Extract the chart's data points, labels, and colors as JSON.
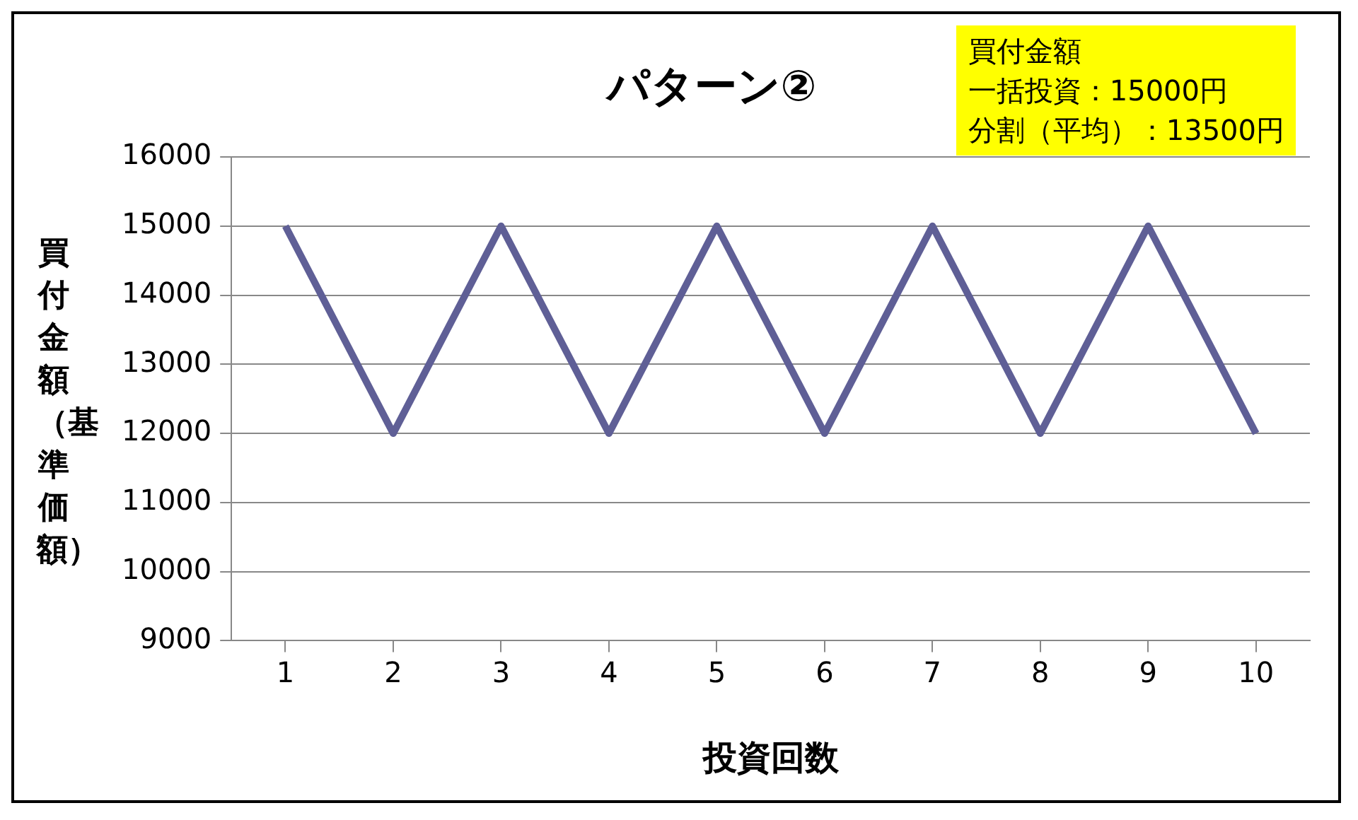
{
  "chart_data": {
    "type": "line",
    "title": "パターン②",
    "xlabel": "投資回数",
    "ylabel": "買付金額（基準価額）",
    "annotations": [
      "買付金額",
      "一括投資：15000円",
      "分割（平均）：13500円"
    ],
    "categories": [
      "1",
      "2",
      "3",
      "4",
      "5",
      "6",
      "7",
      "8",
      "9",
      "10"
    ],
    "series": [
      {
        "color": "#5f5f96",
        "values": [
          15000,
          12000,
          15000,
          12000,
          15000,
          12000,
          15000,
          12000,
          15000,
          12000
        ]
      }
    ],
    "ylim": [
      9000,
      16000
    ],
    "yticks": [
      9000,
      10000,
      11000,
      12000,
      13000,
      14000,
      15000,
      16000
    ],
    "grid": "y",
    "legend": false,
    "marker": "none",
    "line_style": "solid"
  }
}
